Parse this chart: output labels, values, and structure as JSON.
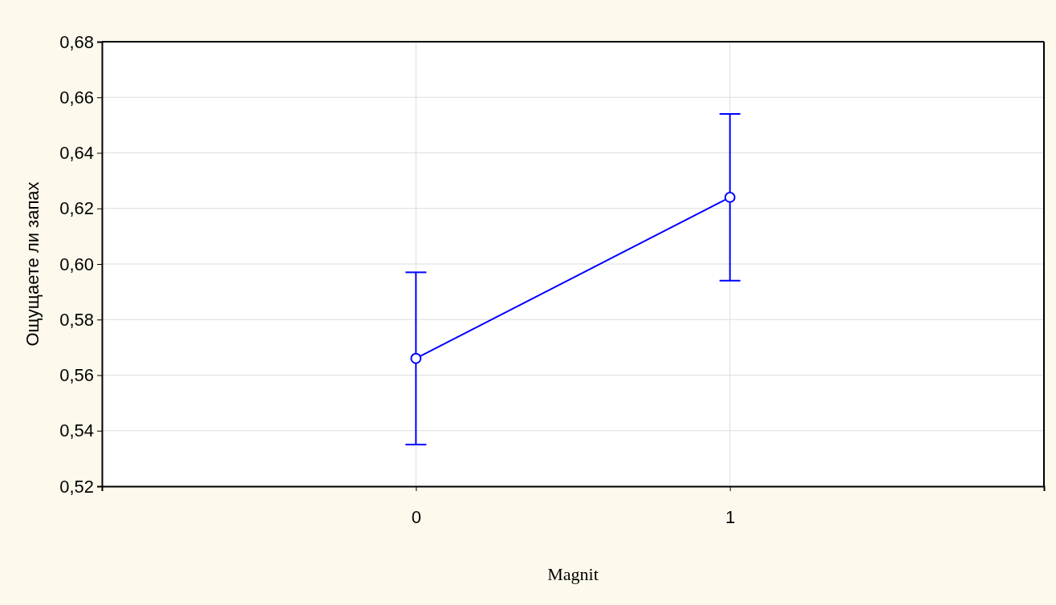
{
  "chart_data": {
    "type": "line",
    "xlabel": "Magnit",
    "ylabel": "Ощущаете ли запах",
    "x": [
      0,
      1
    ],
    "xlim": [
      -1,
      2
    ],
    "xticks": [
      0,
      1
    ],
    "ylim": [
      0.52,
      0.68
    ],
    "yticks": [
      {
        "value": 0.52,
        "label": "0,52"
      },
      {
        "value": 0.54,
        "label": "0,54"
      },
      {
        "value": 0.56,
        "label": "0,56"
      },
      {
        "value": 0.58,
        "label": "0,58"
      },
      {
        "value": 0.6,
        "label": "0,60"
      },
      {
        "value": 0.62,
        "label": "0,62"
      },
      {
        "value": 0.64,
        "label": "0,64"
      },
      {
        "value": 0.66,
        "label": "0,66"
      },
      {
        "value": 0.68,
        "label": "0,68"
      }
    ],
    "series": [
      {
        "color": "#0000ff",
        "values": [
          0.566,
          0.624
        ],
        "errors": [
          [
            0.535,
            0.597
          ],
          [
            0.594,
            0.654
          ]
        ]
      }
    ],
    "marker": "circle",
    "line_style": "solid",
    "grid": true
  }
}
